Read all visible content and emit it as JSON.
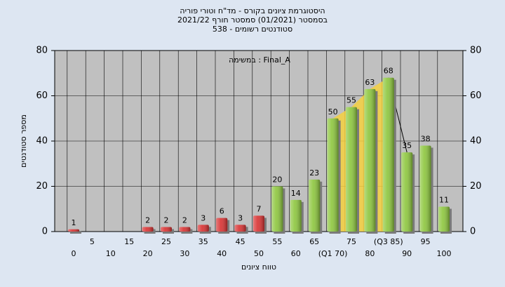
{
  "chart_data": {
    "type": "bar",
    "title": [
      "היסטוגרמת ציונים בקורס - מד\"ח וטורי פוריה",
      "בסמסטר  (01/2021)  סמסטר חורף 2021/22",
      "סטודנטים רשומים - 538"
    ],
    "annotation": "במשימה : Final_A",
    "x_label": "טווח ציונים",
    "y_label": "מספר סטודנטים",
    "categories": [
      "0",
      "5",
      "10",
      "15",
      "20",
      "25",
      "30",
      "35",
      "40",
      "45",
      "50",
      "55",
      "60",
      "65",
      "(Q1 70)",
      "75",
      "80",
      "(Q3 85)",
      "90",
      "95",
      "100"
    ],
    "values": [
      1,
      null,
      null,
      null,
      2,
      2,
      2,
      3,
      6,
      3,
      7,
      20,
      14,
      23,
      50,
      55,
      63,
      68,
      35,
      38,
      11
    ],
    "colors": [
      "#d83030",
      null,
      null,
      null,
      "#d83030",
      "#d83030",
      "#d83030",
      "#d83030",
      "#d83030",
      "#d83030",
      "#d83030",
      "#8cc63c",
      "#8cc63c",
      "#8cc63c",
      "#8cc63c",
      "#8cc63c",
      "#8cc63c",
      "#8cc63c",
      "#8cc63c",
      "#8cc63c",
      "#8cc63c"
    ],
    "highlight_color": "#f5d040",
    "ylim": [
      0,
      80
    ],
    "yticks": [
      0,
      20,
      40,
      60,
      80
    ],
    "y2lim": [
      0,
      80
    ],
    "y2ticks": [
      0,
      20,
      40,
      60,
      80
    ],
    "grid": true
  }
}
